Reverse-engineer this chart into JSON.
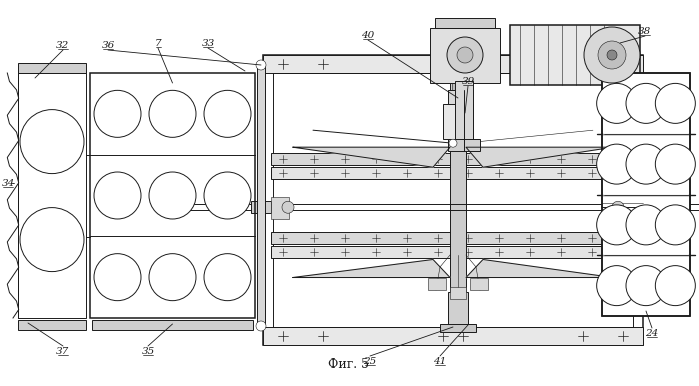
{
  "title": "Фиг. 5",
  "bg_color": "#ffffff",
  "line_color": "#1a1a1a",
  "lw_main": 0.7,
  "lw_thick": 1.1,
  "lw_thin": 0.4,
  "figsize": [
    6.99,
    3.86
  ],
  "dpi": 100
}
